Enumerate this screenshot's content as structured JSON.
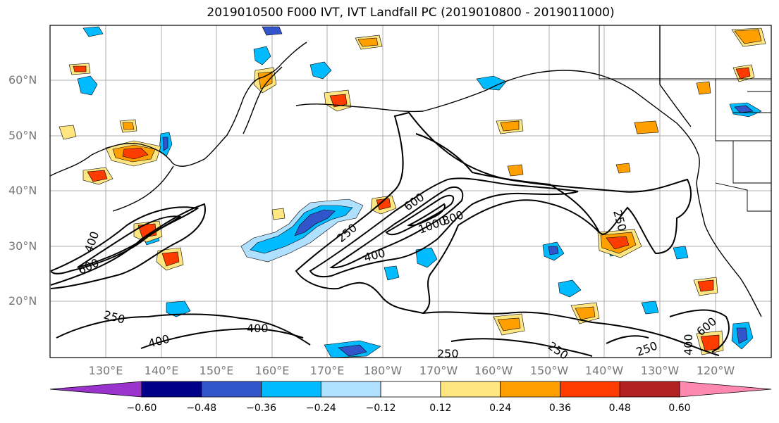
{
  "title": "2019010500 F000 IVT, IVT Landfall PC (2019010800 - 2019011000)",
  "lat_labels": [
    "60°N",
    "50°N",
    "40°N",
    "30°N",
    "20°N"
  ],
  "lon_labels": [
    "130°E",
    "140°E",
    "150°E",
    "160°E",
    "170°E",
    "180°W",
    "170°W",
    "160°W",
    "150°W",
    "140°W",
    "130°W",
    "120°W"
  ],
  "contour_labels": [
    "600",
    "1000",
    "800",
    "400",
    "250",
    "250",
    "600",
    "400",
    "250",
    "400",
    "400",
    "250",
    "250",
    "600",
    "400",
    "250"
  ],
  "colorbar": {
    "ticks": [
      "−0.60",
      "−0.48",
      "−0.36",
      "−0.24",
      "−0.12",
      "0.12",
      "0.24",
      "0.36",
      "0.48",
      "0.60"
    ],
    "colors": [
      "#9933cc",
      "#000088",
      "#3355cc",
      "#00bbff",
      "#b0e0ff",
      "#ffffff",
      "#ffe680",
      "#ff9f00",
      "#ff3c00",
      "#b22222",
      "#ff88b0"
    ]
  },
  "colors": {
    "coast": "#000000",
    "contour": "#000000",
    "grid": "#999999",
    "neg_light": "#b0e0ff",
    "neg_mid": "#00bbff",
    "neg_dark": "#3355cc",
    "neg_darkest": "#000088",
    "pos_light": "#ffe680",
    "pos_mid": "#ff9f00",
    "pos_dark": "#ff3c00",
    "pos_darkest": "#b22222"
  }
}
